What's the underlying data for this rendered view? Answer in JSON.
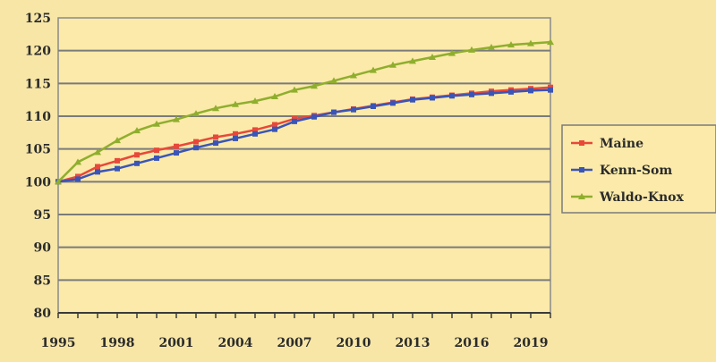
{
  "chart_data": {
    "type": "line",
    "title": "",
    "xlabel": "",
    "ylabel": "",
    "x": [
      1995,
      1996,
      1997,
      1998,
      1999,
      2000,
      2001,
      2002,
      2003,
      2004,
      2005,
      2006,
      2007,
      2008,
      2009,
      2010,
      2011,
      2012,
      2013,
      2014,
      2015,
      2016,
      2017,
      2018,
      2019,
      2020
    ],
    "xticks": [
      1995,
      1998,
      2001,
      2004,
      2007,
      2010,
      2013,
      2016,
      2019
    ],
    "yticks": [
      80,
      85,
      90,
      95,
      100,
      105,
      110,
      115,
      120,
      125
    ],
    "ylim": [
      80,
      125
    ],
    "grid": true,
    "legend_position": "right",
    "series": [
      {
        "name": "Maine",
        "color": "#e8483a",
        "marker": "square",
        "values": [
          100,
          100.8,
          102.3,
          103.2,
          104.1,
          104.8,
          105.4,
          106.1,
          106.8,
          107.3,
          107.9,
          108.7,
          109.6,
          110.1,
          110.6,
          111.1,
          111.6,
          112.1,
          112.6,
          112.9,
          113.2,
          113.5,
          113.8,
          114.0,
          114.2,
          114.4
        ]
      },
      {
        "name": "Kenn-Som",
        "color": "#3a55b8",
        "marker": "square",
        "values": [
          100,
          100.4,
          101.5,
          102.0,
          102.8,
          103.6,
          104.4,
          105.2,
          105.9,
          106.6,
          107.3,
          108.0,
          109.2,
          109.9,
          110.6,
          111.0,
          111.5,
          112.0,
          112.5,
          112.8,
          113.1,
          113.3,
          113.5,
          113.7,
          113.9,
          114.0
        ]
      },
      {
        "name": "Waldo-Knox",
        "color": "#8fae2e",
        "marker": "triangle",
        "values": [
          100,
          103.0,
          104.5,
          106.3,
          107.8,
          108.8,
          109.5,
          110.4,
          111.2,
          111.8,
          112.3,
          113.0,
          114.0,
          114.6,
          115.4,
          116.2,
          117.0,
          117.8,
          118.4,
          119.0,
          119.6,
          120.1,
          120.5,
          120.9,
          121.1,
          121.3
        ]
      }
    ]
  }
}
